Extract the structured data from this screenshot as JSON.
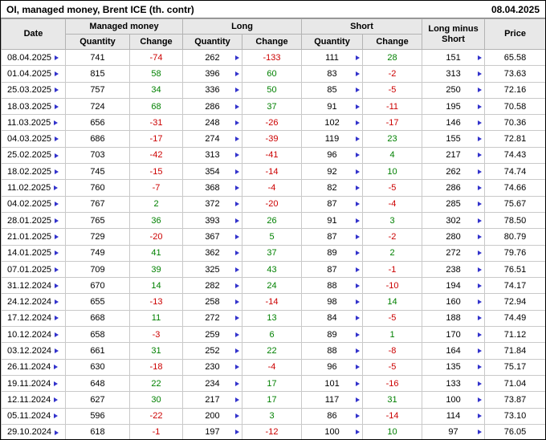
{
  "title": "OI, managed money, Brent ICE (th. contr)",
  "report_date": "08.04.2025",
  "header": {
    "date": "Date",
    "managed_money": "Managed money",
    "long": "Long",
    "short": "Short",
    "long_minus_short": "Long minus Short",
    "price": "Price",
    "quantity": "Quantity",
    "change": "Change"
  },
  "colors": {
    "positive": "#008000",
    "negative": "#cc0000",
    "header_bg": "#e8e8e8",
    "marker": "#3333cc"
  },
  "chart_data": {
    "type": "table",
    "title": "OI, managed money, Brent ICE (th. contr)",
    "report_date": "08.04.2025",
    "columns": [
      "Date",
      "Managed money Quantity",
      "Managed money Change",
      "Long Quantity",
      "Long Change",
      "Short Quantity",
      "Short Change",
      "Long minus Short",
      "Price"
    ],
    "rows": [
      [
        "08.04.2025",
        "741",
        "-74",
        "262",
        "-133",
        "111",
        "28",
        "151",
        "65.58"
      ],
      [
        "01.04.2025",
        "815",
        "58",
        "396",
        "60",
        "83",
        "-2",
        "313",
        "73.63"
      ],
      [
        "25.03.2025",
        "757",
        "34",
        "336",
        "50",
        "85",
        "-5",
        "250",
        "72.16"
      ],
      [
        "18.03.2025",
        "724",
        "68",
        "286",
        "37",
        "91",
        "-11",
        "195",
        "70.58"
      ],
      [
        "11.03.2025",
        "656",
        "-31",
        "248",
        "-26",
        "102",
        "-17",
        "146",
        "70.36"
      ],
      [
        "04.03.2025",
        "686",
        "-17",
        "274",
        "-39",
        "119",
        "23",
        "155",
        "72.81"
      ],
      [
        "25.02.2025",
        "703",
        "-42",
        "313",
        "-41",
        "96",
        "4",
        "217",
        "74.43"
      ],
      [
        "18.02.2025",
        "745",
        "-15",
        "354",
        "-14",
        "92",
        "10",
        "262",
        "74.74"
      ],
      [
        "11.02.2025",
        "760",
        "-7",
        "368",
        "-4",
        "82",
        "-5",
        "286",
        "74.66"
      ],
      [
        "04.02.2025",
        "767",
        "2",
        "372",
        "-20",
        "87",
        "-4",
        "285",
        "75.67"
      ],
      [
        "28.01.2025",
        "765",
        "36",
        "393",
        "26",
        "91",
        "3",
        "302",
        "78.50"
      ],
      [
        "21.01.2025",
        "729",
        "-20",
        "367",
        "5",
        "87",
        "-2",
        "280",
        "80.79"
      ],
      [
        "14.01.2025",
        "749",
        "41",
        "362",
        "37",
        "89",
        "2",
        "272",
        "79.76"
      ],
      [
        "07.01.2025",
        "709",
        "39",
        "325",
        "43",
        "87",
        "-1",
        "238",
        "76.51"
      ],
      [
        "31.12.2024",
        "670",
        "14",
        "282",
        "24",
        "88",
        "-10",
        "194",
        "74.17"
      ],
      [
        "24.12.2024",
        "655",
        "-13",
        "258",
        "-14",
        "98",
        "14",
        "160",
        "72.94"
      ],
      [
        "17.12.2024",
        "668",
        "11",
        "272",
        "13",
        "84",
        "-5",
        "188",
        "74.49"
      ],
      [
        "10.12.2024",
        "658",
        "-3",
        "259",
        "6",
        "89",
        "1",
        "170",
        "71.12"
      ],
      [
        "03.12.2024",
        "661",
        "31",
        "252",
        "22",
        "88",
        "-8",
        "164",
        "71.84"
      ],
      [
        "26.11.2024",
        "630",
        "-18",
        "230",
        "-4",
        "96",
        "-5",
        "135",
        "75.17"
      ],
      [
        "19.11.2024",
        "648",
        "22",
        "234",
        "17",
        "101",
        "-16",
        "133",
        "71.04"
      ],
      [
        "12.11.2024",
        "627",
        "30",
        "217",
        "17",
        "117",
        "31",
        "100",
        "73.87"
      ],
      [
        "05.11.2024",
        "596",
        "-22",
        "200",
        "3",
        "86",
        "-14",
        "114",
        "73.10"
      ],
      [
        "29.10.2024",
        "618",
        "-1",
        "197",
        "-12",
        "100",
        "10",
        "97",
        "76.05"
      ]
    ]
  }
}
